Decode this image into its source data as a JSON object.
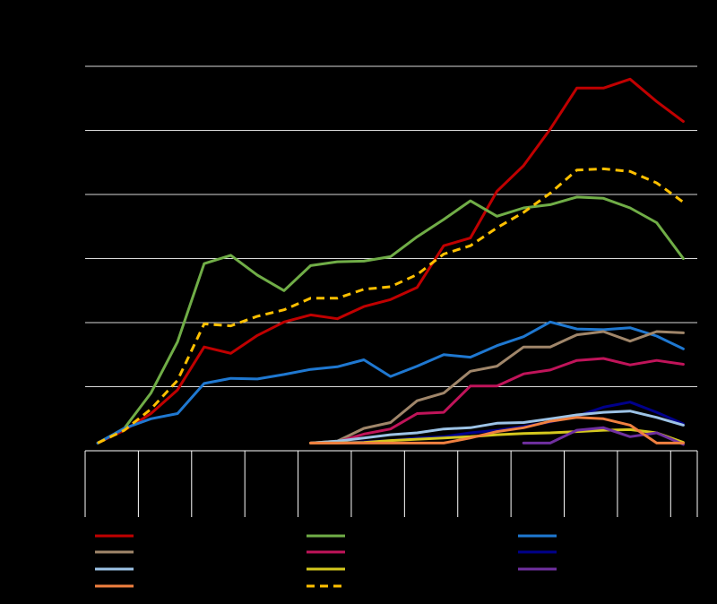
{
  "chart_data": {
    "type": "line",
    "title": "",
    "xlabel": "",
    "ylabel": "",
    "ylim": [
      0,
      6
    ],
    "grid": true,
    "legend_position": "bottom",
    "x": [
      0,
      1,
      2,
      3,
      4,
      5,
      6,
      7,
      8,
      9,
      10,
      11,
      12,
      13,
      14,
      15,
      16,
      17,
      18,
      19,
      20,
      21,
      22
    ],
    "series": [
      {
        "color": "#C00000",
        "dash": false,
        "values": [
          0.12,
          0.32,
          0.58,
          0.95,
          1.62,
          1.52,
          1.8,
          2.01,
          2.12,
          2.06,
          2.25,
          2.36,
          2.55,
          3.2,
          3.32,
          4.05,
          4.45,
          5.02,
          5.66,
          5.66,
          5.8,
          5.45,
          5.14
        ]
      },
      {
        "color": "#70AD47",
        "dash": false,
        "values": [
          0.12,
          0.35,
          0.9,
          1.7,
          2.92,
          3.05,
          2.74,
          2.5,
          2.89,
          2.95,
          2.96,
          3.03,
          3.34,
          3.61,
          3.9,
          3.66,
          3.79,
          3.84,
          3.96,
          3.94,
          3.79,
          3.56,
          3.0
        ]
      },
      {
        "color": "#1F78D1",
        "dash": false,
        "values": [
          0.12,
          0.35,
          0.5,
          0.58,
          1.05,
          1.13,
          1.12,
          1.19,
          1.27,
          1.31,
          1.42,
          1.16,
          1.32,
          1.5,
          1.46,
          1.64,
          1.78,
          2.01,
          1.9,
          1.89,
          1.92,
          1.79,
          1.59
        ]
      },
      {
        "color": "#A0866A",
        "dash": false,
        "values": [
          null,
          null,
          null,
          null,
          null,
          null,
          null,
          null,
          0.12,
          0.15,
          0.35,
          0.44,
          0.78,
          0.9,
          1.24,
          1.32,
          1.62,
          1.62,
          1.81,
          1.86,
          1.71,
          1.86,
          1.84
        ]
      },
      {
        "color": "#C0145A",
        "dash": false,
        "values": [
          null,
          null,
          null,
          null,
          null,
          null,
          null,
          null,
          0.12,
          0.14,
          0.26,
          0.34,
          0.58,
          0.6,
          1.01,
          1.01,
          1.2,
          1.26,
          1.41,
          1.44,
          1.34,
          1.41,
          1.35
        ]
      },
      {
        "color": "#00008B",
        "dash": false,
        "values": [
          null,
          null,
          null,
          null,
          null,
          null,
          null,
          null,
          0.12,
          0.12,
          0.14,
          0.16,
          0.2,
          0.22,
          0.28,
          0.32,
          0.38,
          0.45,
          0.54,
          0.68,
          0.76,
          0.6,
          0.42
        ]
      },
      {
        "color": "#9DC3E6",
        "dash": false,
        "values": [
          null,
          null,
          null,
          null,
          null,
          null,
          null,
          null,
          0.12,
          0.15,
          0.2,
          0.25,
          0.28,
          0.34,
          0.36,
          0.43,
          0.44,
          0.5,
          0.56,
          0.6,
          0.62,
          0.52,
          0.4
        ]
      },
      {
        "color": "#D4C81E",
        "dash": false,
        "values": [
          null,
          null,
          null,
          null,
          null,
          null,
          null,
          null,
          0.12,
          0.12,
          0.13,
          0.16,
          0.18,
          0.2,
          0.22,
          0.25,
          0.27,
          0.28,
          0.3,
          0.32,
          0.33,
          0.28,
          0.13
        ]
      },
      {
        "color": "#7030A0",
        "dash": false,
        "values": [
          null,
          null,
          null,
          null,
          null,
          null,
          null,
          null,
          null,
          null,
          null,
          null,
          null,
          null,
          null,
          null,
          0.12,
          0.12,
          0.32,
          0.36,
          0.22,
          0.28,
          0.1
        ]
      },
      {
        "color": "#F08040",
        "dash": false,
        "values": [
          null,
          null,
          null,
          null,
          null,
          null,
          null,
          null,
          0.12,
          0.12,
          0.12,
          0.12,
          0.12,
          0.12,
          0.2,
          0.3,
          0.36,
          0.46,
          0.52,
          0.5,
          0.4,
          0.12,
          0.12
        ]
      },
      {
        "color": "#FFC000",
        "dash": true,
        "values": [
          0.12,
          0.32,
          0.65,
          1.1,
          1.98,
          1.95,
          2.1,
          2.2,
          2.38,
          2.38,
          2.52,
          2.56,
          2.75,
          3.07,
          3.2,
          3.48,
          3.72,
          4.02,
          4.38,
          4.4,
          4.36,
          4.18,
          3.88
        ]
      }
    ],
    "legend": [
      {
        "series": 0,
        "col": 0,
        "row": 0
      },
      {
        "series": 1,
        "col": 1,
        "row": 0
      },
      {
        "series": 2,
        "col": 2,
        "row": 0
      },
      {
        "series": 3,
        "col": 0,
        "row": 1
      },
      {
        "series": 4,
        "col": 1,
        "row": 1
      },
      {
        "series": 5,
        "col": 2,
        "row": 1
      },
      {
        "series": 6,
        "col": 0,
        "row": 2
      },
      {
        "series": 7,
        "col": 1,
        "row": 2
      },
      {
        "series": 8,
        "col": 2,
        "row": 2
      },
      {
        "series": 9,
        "col": 0,
        "row": 3
      },
      {
        "series": 10,
        "col": 1,
        "row": 3
      }
    ]
  }
}
